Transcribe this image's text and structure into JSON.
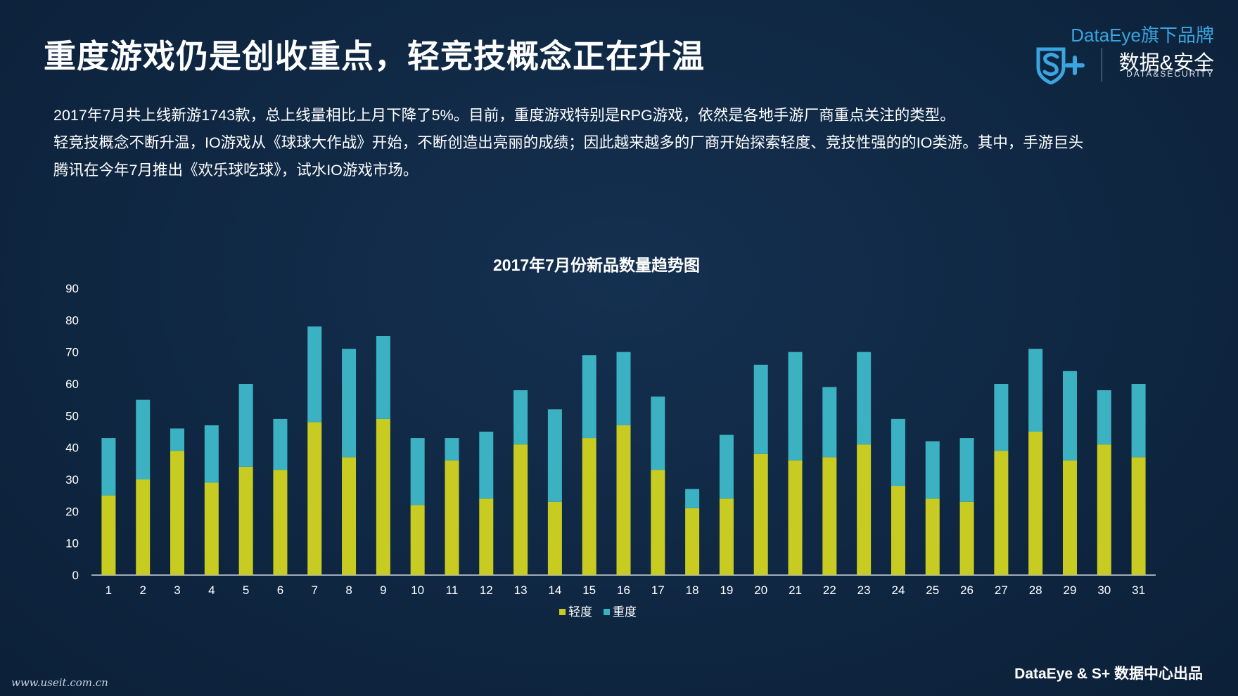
{
  "header": {
    "title": "重度游戏仍是创收重点，轻竞技概念正在升温"
  },
  "brand": {
    "tagline": "DataEye旗下品牌",
    "name_cn": "数据&安全",
    "name_en": "DATA&SECURITY",
    "logo_icon": "shield-s-plus-logo-icon",
    "accent_color": "#3aa5e0"
  },
  "description": {
    "line1": "2017年7月共上线新游1743款，总上线量相比上月下降了5%。目前，重度游戏特别是RPG游戏，依然是各地手游厂商重点关注的类型。",
    "line2": "轻竞技概念不断升温，IO游戏从《球球大作战》开始，不断创造出亮丽的成绩；因此越来越多的厂商开始探索轻度、竞技性强的的IO类游。其中，手游巨头",
    "line3": "腾讯在今年7月推出《欢乐球吃球》，试水IO游戏市场。"
  },
  "chart_data": {
    "type": "bar",
    "stacked": true,
    "title": "2017年7月份新品数量趋势图",
    "xlabel": "",
    "ylabel": "",
    "ylim": [
      0,
      90
    ],
    "yticks": [
      0,
      10,
      20,
      30,
      40,
      50,
      60,
      70,
      80,
      90
    ],
    "grid": false,
    "legend_position": "bottom",
    "categories": [
      "1",
      "2",
      "3",
      "4",
      "5",
      "6",
      "7",
      "8",
      "9",
      "10",
      "11",
      "12",
      "13",
      "14",
      "15",
      "16",
      "17",
      "18",
      "19",
      "20",
      "21",
      "22",
      "23",
      "24",
      "25",
      "26",
      "27",
      "28",
      "29",
      "30",
      "31"
    ],
    "series": [
      {
        "name": "轻度",
        "color": "#c8cc22",
        "values": [
          25,
          30,
          39,
          29,
          34,
          33,
          48,
          37,
          49,
          22,
          36,
          24,
          41,
          23,
          43,
          47,
          33,
          21,
          24,
          38,
          36,
          37,
          41,
          28,
          24,
          23,
          39,
          45,
          36,
          41,
          37
        ]
      },
      {
        "name": "重度",
        "color": "#3bb1c1",
        "values": [
          18,
          25,
          7,
          18,
          26,
          16,
          30,
          34,
          26,
          21,
          7,
          21,
          17,
          29,
          26,
          23,
          23,
          6,
          20,
          28,
          34,
          22,
          29,
          21,
          18,
          20,
          21,
          26,
          28,
          17,
          23
        ]
      }
    ]
  },
  "footer": {
    "credit": "DataEye & S+ 数据中心出品",
    "watermark": "www.useit.com.cn"
  }
}
